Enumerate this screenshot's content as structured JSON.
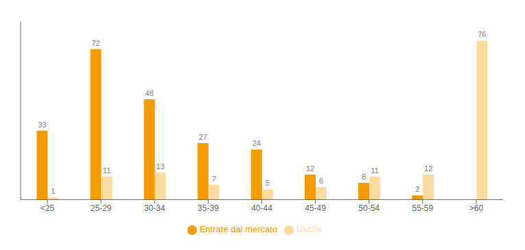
{
  "chart_data": {
    "type": "bar",
    "categories": [
      "<25",
      "25-29",
      "30-34",
      "35-39",
      "40-44",
      "45-49",
      "50-54",
      "55-59",
      ">60"
    ],
    "series": [
      {
        "name": "Entrate dal mercato",
        "color": "#F59B00",
        "values": [
          33,
          72,
          48,
          27,
          24,
          12,
          8,
          2,
          0
        ]
      },
      {
        "name": "Uscite",
        "color": "#FDDBA0",
        "values": [
          1,
          11,
          13,
          7,
          5,
          6,
          11,
          12,
          76
        ]
      }
    ],
    "ylim": [
      0,
      85
    ],
    "data_labels": true,
    "tick_labels": "x",
    "grid": false,
    "legend": "bottom"
  }
}
